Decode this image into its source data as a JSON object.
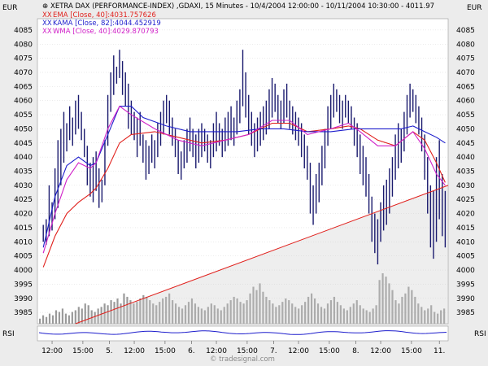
{
  "chart_data": {
    "type": "line",
    "title": "XETRA DAX (PERFORMANCE-INDEX) ,GDAXI, 15 Minutes - 10/4/2004 12:00:00 - 10/11/2004 10:30:00 - 4011.97",
    "left_unit": "EUR",
    "right_unit": "EUR",
    "rsi_label": "RSI",
    "watermark": "© tradesignal.com",
    "legend": [
      {
        "marker": "XX",
        "text": "EMA [Close, 40]:4031.757626",
        "color": "#e0201c"
      },
      {
        "marker": "XX",
        "text": "KAMA [Close, 82]:4044.452919",
        "color": "#1c1ccc"
      },
      {
        "marker": "XX",
        "text": "WMA [Close, 40]:4029.870793",
        "color": "#d020c8"
      }
    ],
    "y_ticks": [
      3985,
      3990,
      3995,
      4000,
      4005,
      4010,
      4015,
      4020,
      4025,
      4030,
      4035,
      4040,
      4045,
      4050,
      4055,
      4060,
      4065,
      4070,
      4075,
      4080,
      4085
    ],
    "ylim": [
      3981,
      4089
    ],
    "x_ticks": [
      {
        "label": "12:00",
        "t": 0.05
      },
      {
        "label": "15:00",
        "t": 0.155
      },
      {
        "label": "5.",
        "t": 0.245
      },
      {
        "label": "12:00",
        "t": 0.33
      },
      {
        "label": "15:00",
        "t": 0.435
      },
      {
        "label": "6.",
        "t": 0.525
      },
      {
        "label": "12:00",
        "t": 0.61
      },
      {
        "label": "15:00",
        "t": 0.715
      },
      {
        "label": "7.",
        "t": 0.805
      },
      {
        "label": "12:00",
        "t": 0.89
      },
      {
        "label": "15:00",
        "t": 0.995
      },
      {
        "label": "8.",
        "t": 1.085
      },
      {
        "label": "12:00",
        "t": 1.17
      },
      {
        "label": "15:00",
        "t": 1.275
      },
      {
        "label": "11.",
        "t": 1.37
      }
    ],
    "x_range": [
      0,
      1.4
    ],
    "price_bars": [
      [
        0.02,
        4010,
        4016
      ],
      [
        0.03,
        4009,
        4018
      ],
      [
        0.04,
        4012,
        4030
      ],
      [
        0.05,
        4014,
        4024
      ],
      [
        0.06,
        4018,
        4036
      ],
      [
        0.07,
        4022,
        4046
      ],
      [
        0.08,
        4030,
        4050
      ],
      [
        0.09,
        4038,
        4056
      ],
      [
        0.1,
        4042,
        4052
      ],
      [
        0.11,
        4046,
        4058
      ],
      [
        0.12,
        4044,
        4054
      ],
      [
        0.13,
        4048,
        4060
      ],
      [
        0.14,
        4050,
        4062
      ],
      [
        0.15,
        4046,
        4056
      ],
      [
        0.16,
        4040,
        4050
      ],
      [
        0.17,
        4030,
        4044
      ],
      [
        0.18,
        4026,
        4038
      ],
      [
        0.19,
        4024,
        4040
      ],
      [
        0.2,
        4028,
        4042
      ],
      [
        0.21,
        4022,
        4036
      ],
      [
        0.22,
        4024,
        4032
      ],
      [
        0.23,
        4030,
        4046
      ],
      [
        0.24,
        4044,
        4062
      ],
      [
        0.25,
        4056,
        4070
      ],
      [
        0.26,
        4062,
        4076
      ],
      [
        0.27,
        4066,
        4072
      ],
      [
        0.28,
        4068,
        4078
      ],
      [
        0.29,
        4062,
        4074
      ],
      [
        0.3,
        4058,
        4070
      ],
      [
        0.31,
        4050,
        4066
      ],
      [
        0.32,
        4048,
        4060
      ],
      [
        0.33,
        4046,
        4056
      ],
      [
        0.34,
        4040,
        4054
      ],
      [
        0.35,
        4044,
        4056
      ],
      [
        0.36,
        4038,
        4048
      ],
      [
        0.37,
        4032,
        4046
      ],
      [
        0.38,
        4034,
        4044
      ],
      [
        0.39,
        4038,
        4048
      ],
      [
        0.4,
        4036,
        4046
      ],
      [
        0.41,
        4040,
        4052
      ],
      [
        0.42,
        4044,
        4056
      ],
      [
        0.43,
        4048,
        4060
      ],
      [
        0.44,
        4052,
        4062
      ],
      [
        0.45,
        4048,
        4060
      ],
      [
        0.46,
        4044,
        4054
      ],
      [
        0.47,
        4040,
        4050
      ],
      [
        0.48,
        4034,
        4046
      ],
      [
        0.49,
        4032,
        4042
      ],
      [
        0.5,
        4036,
        4046
      ],
      [
        0.51,
        4038,
        4050
      ],
      [
        0.52,
        4042,
        4054
      ],
      [
        0.53,
        4040,
        4050
      ],
      [
        0.54,
        4036,
        4048
      ],
      [
        0.55,
        4038,
        4050
      ],
      [
        0.56,
        4040,
        4052
      ],
      [
        0.57,
        4042,
        4050
      ],
      [
        0.58,
        4038,
        4048
      ],
      [
        0.59,
        4036,
        4046
      ],
      [
        0.6,
        4040,
        4052
      ],
      [
        0.61,
        4042,
        4056
      ],
      [
        0.62,
        4044,
        4052
      ],
      [
        0.63,
        4040,
        4050
      ],
      [
        0.64,
        4042,
        4054
      ],
      [
        0.65,
        4044,
        4056
      ],
      [
        0.66,
        4046,
        4058
      ],
      [
        0.67,
        4044,
        4054
      ],
      [
        0.68,
        4048,
        4060
      ],
      [
        0.69,
        4052,
        4064
      ],
      [
        0.7,
        4058,
        4078
      ],
      [
        0.71,
        4054,
        4070
      ],
      [
        0.72,
        4048,
        4062
      ],
      [
        0.73,
        4044,
        4056
      ],
      [
        0.74,
        4040,
        4052
      ],
      [
        0.75,
        4042,
        4054
      ],
      [
        0.76,
        4044,
        4056
      ],
      [
        0.77,
        4046,
        4058
      ],
      [
        0.78,
        4048,
        4060
      ],
      [
        0.79,
        4050,
        4064
      ],
      [
        0.8,
        4054,
        4068
      ],
      [
        0.81,
        4056,
        4066
      ],
      [
        0.82,
        4052,
        4062
      ],
      [
        0.83,
        4050,
        4060
      ],
      [
        0.84,
        4052,
        4064
      ],
      [
        0.85,
        4054,
        4066
      ],
      [
        0.86,
        4050,
        4060
      ],
      [
        0.87,
        4048,
        4058
      ],
      [
        0.88,
        4046,
        4056
      ],
      [
        0.89,
        4044,
        4054
      ],
      [
        0.9,
        4040,
        4052
      ],
      [
        0.91,
        4036,
        4048
      ],
      [
        0.92,
        4032,
        4044
      ],
      [
        0.93,
        4020,
        4038
      ],
      [
        0.94,
        4016,
        4030
      ],
      [
        0.95,
        4020,
        4034
      ],
      [
        0.96,
        4024,
        4038
      ],
      [
        0.97,
        4030,
        4044
      ],
      [
        0.98,
        4036,
        4050
      ],
      [
        0.99,
        4044,
        4058
      ],
      [
        1.0,
        4050,
        4062
      ],
      [
        1.01,
        4054,
        4066
      ],
      [
        1.02,
        4056,
        4064
      ],
      [
        1.03,
        4052,
        4062
      ],
      [
        1.04,
        4050,
        4060
      ],
      [
        1.05,
        4054,
        4062
      ],
      [
        1.06,
        4052,
        4060
      ],
      [
        1.07,
        4050,
        4058
      ],
      [
        1.08,
        4044,
        4054
      ],
      [
        1.09,
        4040,
        4052
      ],
      [
        1.1,
        4034,
        4048
      ],
      [
        1.11,
        4030,
        4044
      ],
      [
        1.12,
        4026,
        4040
      ],
      [
        1.13,
        4020,
        4034
      ],
      [
        1.14,
        4010,
        4026
      ],
      [
        1.15,
        4006,
        4020
      ],
      [
        1.16,
        4002,
        4018
      ],
      [
        1.17,
        4010,
        4024
      ],
      [
        1.18,
        4014,
        4030
      ],
      [
        1.19,
        4016,
        4032
      ],
      [
        1.2,
        4020,
        4036
      ],
      [
        1.21,
        4026,
        4040
      ],
      [
        1.22,
        4032,
        4048
      ],
      [
        1.23,
        4036,
        4052
      ],
      [
        1.24,
        4038,
        4050
      ],
      [
        1.25,
        4042,
        4056
      ],
      [
        1.26,
        4048,
        4062
      ],
      [
        1.27,
        4054,
        4066
      ],
      [
        1.28,
        4056,
        4064
      ],
      [
        1.29,
        4052,
        4062
      ],
      [
        1.3,
        4048,
        4058
      ],
      [
        1.31,
        4042,
        4054
      ],
      [
        1.32,
        4032,
        4048
      ],
      [
        1.33,
        4020,
        4040
      ],
      [
        1.34,
        4008,
        4030
      ],
      [
        1.35,
        4004,
        4028
      ],
      [
        1.36,
        4010,
        4040
      ],
      [
        1.37,
        4018,
        4046
      ],
      [
        1.38,
        4012,
        4034
      ],
      [
        1.39,
        4008,
        4028
      ]
    ],
    "ema": [
      [
        0.02,
        4001
      ],
      [
        0.06,
        4012
      ],
      [
        0.1,
        4020
      ],
      [
        0.14,
        4024
      ],
      [
        0.18,
        4027
      ],
      [
        0.2,
        4029
      ],
      [
        0.24,
        4036
      ],
      [
        0.28,
        4045
      ],
      [
        0.32,
        4048
      ],
      [
        0.4,
        4049
      ],
      [
        0.48,
        4047
      ],
      [
        0.56,
        4045
      ],
      [
        0.64,
        4046
      ],
      [
        0.72,
        4048
      ],
      [
        0.8,
        4052
      ],
      [
        0.86,
        4052
      ],
      [
        0.92,
        4049
      ],
      [
        1.0,
        4050
      ],
      [
        1.06,
        4051
      ],
      [
        1.1,
        4050
      ],
      [
        1.16,
        4046
      ],
      [
        1.22,
        4044
      ],
      [
        1.28,
        4049
      ],
      [
        1.32,
        4046
      ],
      [
        1.36,
        4038
      ],
      [
        1.39,
        4031
      ]
    ],
    "kama": [
      [
        0.02,
        4008
      ],
      [
        0.06,
        4026
      ],
      [
        0.1,
        4037
      ],
      [
        0.14,
        4040
      ],
      [
        0.18,
        4037
      ],
      [
        0.2,
        4038
      ],
      [
        0.24,
        4048
      ],
      [
        0.28,
        4058
      ],
      [
        0.32,
        4058
      ],
      [
        0.36,
        4054
      ],
      [
        0.44,
        4051
      ],
      [
        0.52,
        4049
      ],
      [
        0.6,
        4049
      ],
      [
        0.68,
        4049
      ],
      [
        0.76,
        4050
      ],
      [
        0.84,
        4050
      ],
      [
        0.92,
        4049
      ],
      [
        1.0,
        4049
      ],
      [
        1.08,
        4050
      ],
      [
        1.16,
        4050
      ],
      [
        1.24,
        4050
      ],
      [
        1.28,
        4051
      ],
      [
        1.32,
        4049
      ],
      [
        1.36,
        4047
      ],
      [
        1.39,
        4045
      ]
    ],
    "wma": [
      [
        0.02,
        4006
      ],
      [
        0.06,
        4020
      ],
      [
        0.1,
        4032
      ],
      [
        0.14,
        4038
      ],
      [
        0.18,
        4036
      ],
      [
        0.2,
        4038
      ],
      [
        0.24,
        4050
      ],
      [
        0.28,
        4058
      ],
      [
        0.32,
        4055
      ],
      [
        0.4,
        4050
      ],
      [
        0.48,
        4046
      ],
      [
        0.56,
        4044
      ],
      [
        0.64,
        4046
      ],
      [
        0.72,
        4048
      ],
      [
        0.8,
        4053
      ],
      [
        0.86,
        4053
      ],
      [
        0.92,
        4048
      ],
      [
        1.0,
        4050
      ],
      [
        1.06,
        4052
      ],
      [
        1.1,
        4049
      ],
      [
        1.16,
        4044
      ],
      [
        1.22,
        4044
      ],
      [
        1.28,
        4049
      ],
      [
        1.32,
        4043
      ],
      [
        1.36,
        4034
      ],
      [
        1.39,
        4030
      ]
    ],
    "trendline": [
      [
        0.13,
        3981
      ],
      [
        1.4,
        4030
      ]
    ],
    "volume": [
      3,
      5,
      4,
      6,
      5,
      8,
      7,
      9,
      6,
      5,
      7,
      8,
      10,
      9,
      12,
      11,
      8,
      7,
      9,
      10,
      12,
      11,
      14,
      13,
      15,
      12,
      18,
      16,
      14,
      12,
      13,
      15,
      17,
      16,
      14,
      12,
      11,
      13,
      15,
      16,
      18,
      14,
      12,
      10,
      9,
      11,
      13,
      15,
      12,
      10,
      9,
      8,
      10,
      12,
      11,
      9,
      8,
      10,
      12,
      14,
      16,
      15,
      13,
      12,
      14,
      18,
      22,
      20,
      24,
      19,
      16,
      14,
      12,
      10,
      11,
      13,
      15,
      14,
      12,
      10,
      9,
      11,
      13,
      16,
      18,
      15,
      12,
      10,
      9,
      12,
      14,
      16,
      13,
      11,
      9,
      8,
      10,
      12,
      14,
      11,
      9,
      8,
      7,
      9,
      11,
      26,
      30,
      28,
      24,
      20,
      14,
      12,
      16,
      18,
      22,
      20,
      16,
      12,
      10,
      8,
      9,
      11,
      7,
      6,
      8,
      9
    ]
  }
}
